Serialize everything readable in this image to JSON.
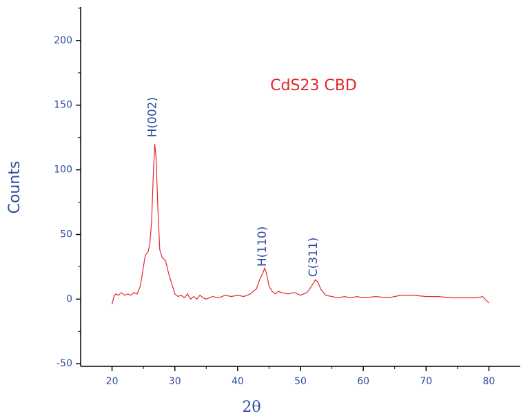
{
  "chart_data": {
    "type": "line",
    "xlabel": "2θ",
    "ylabel": "Counts",
    "x": [
      20,
      20.3,
      20.6,
      21,
      21.5,
      22,
      22.5,
      23,
      23.5,
      24,
      24.5,
      25,
      25.3,
      25.7,
      26,
      26.3,
      26.6,
      26.8,
      27,
      27.3,
      27.6,
      28,
      28.5,
      29,
      29.5,
      30,
      30.5,
      31,
      31.5,
      32,
      32.5,
      33,
      33.5,
      34,
      34.5,
      35,
      36,
      37,
      38,
      39,
      40,
      41,
      42,
      43,
      43.5,
      44,
      44.3,
      44.6,
      45,
      45.5,
      46,
      46.5,
      47,
      48,
      49,
      50,
      51,
      51.5,
      52,
      52.4,
      52.8,
      53.2,
      54,
      55,
      56,
      57,
      58,
      59,
      60,
      62,
      64,
      66,
      68,
      70,
      72,
      74,
      76,
      78,
      79,
      80
    ],
    "series": [
      {
        "name": "CdS23 CBD",
        "color": "#e3262b",
        "values": [
          -4,
          2,
          4,
          3,
          5,
          3,
          4,
          3,
          5,
          4,
          10,
          25,
          34,
          36,
          42,
          60,
          100,
          120,
          110,
          70,
          38,
          32,
          30,
          20,
          12,
          4,
          2,
          3,
          1,
          4,
          0,
          2,
          0,
          3,
          1,
          0,
          2,
          1,
          3,
          2,
          3,
          2,
          4,
          8,
          15,
          20,
          24,
          20,
          10,
          6,
          4,
          6,
          5,
          4,
          5,
          3,
          5,
          8,
          12,
          15,
          13,
          8,
          3,
          2,
          1,
          2,
          1,
          2,
          1,
          2,
          1,
          3,
          3,
          2,
          2,
          1,
          1,
          1,
          2,
          -3
        ]
      }
    ],
    "annotations": [
      {
        "text": "H(002)",
        "x": 26.8
      },
      {
        "text": "H(110)",
        "x": 44.3
      },
      {
        "text": "C(311)",
        "x": 52.4
      }
    ],
    "xlim": [
      15,
      85
    ],
    "ylim": [
      -52,
      226
    ],
    "xticks": [
      20,
      30,
      40,
      50,
      60,
      70,
      80
    ],
    "yticks": [
      -50,
      0,
      50,
      100,
      150,
      200
    ],
    "xminorticks": [
      25,
      35,
      45,
      55,
      65,
      75
    ],
    "yminorticks": [
      -25,
      25,
      75,
      125,
      175,
      225
    ]
  }
}
